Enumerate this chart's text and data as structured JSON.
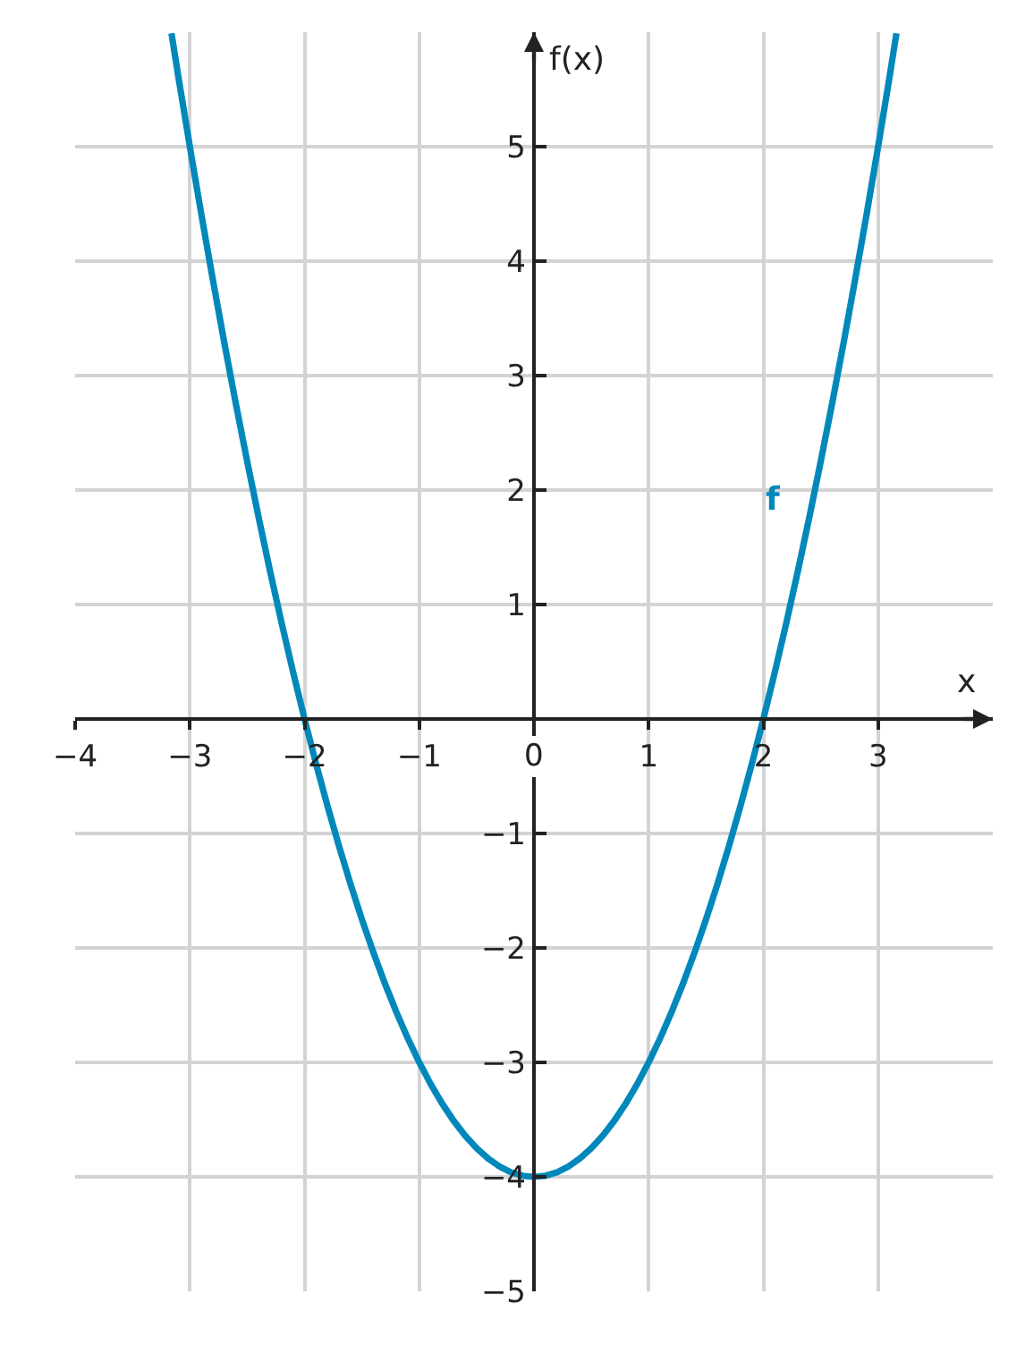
{
  "chart_data": {
    "type": "line",
    "xlabel": "x",
    "ylabel": "f(x)",
    "x": [
      -3.16,
      -3.1,
      -3.0,
      -2.9,
      -2.8,
      -2.7,
      -2.6,
      -2.5,
      -2.4,
      -2.3,
      -2.2,
      -2.1,
      -2.0,
      -1.9,
      -1.8,
      -1.7,
      -1.6,
      -1.5,
      -1.4,
      -1.3,
      -1.2,
      -1.1,
      -1.0,
      -0.9,
      -0.8,
      -0.7,
      -0.6,
      -0.5,
      -0.4,
      -0.3,
      -0.2,
      -0.1,
      0,
      0.1,
      0.2,
      0.3,
      0.4,
      0.5,
      0.6,
      0.7,
      0.8,
      0.9,
      1.0,
      1.1,
      1.2,
      1.3,
      1.4,
      1.5,
      1.6,
      1.7,
      1.8,
      1.9,
      2.0,
      2.1,
      2.2,
      2.3,
      2.4,
      2.5,
      2.6,
      2.7,
      2.8,
      2.9,
      3.0,
      3.1,
      3.16
    ],
    "series": [
      {
        "name": "f",
        "color": "#0088bb",
        "values": [
          5.99,
          5.61,
          5,
          4.41,
          3.84,
          3.29,
          2.76,
          2.25,
          1.76,
          1.29,
          0.84,
          0.41,
          0,
          -0.39,
          -0.76,
          -1.11,
          -1.44,
          -1.75,
          -2.04,
          -2.31,
          -2.56,
          -2.79,
          -3,
          -3.19,
          -3.36,
          -3.51,
          -3.64,
          -3.75,
          -3.84,
          -3.91,
          -3.96,
          -3.99,
          -4,
          -3.99,
          -3.96,
          -3.91,
          -3.84,
          -3.75,
          -3.64,
          -3.51,
          -3.36,
          -3.19,
          -3,
          -2.79,
          -2.56,
          -2.31,
          -2.04,
          -1.75,
          -1.44,
          -1.11,
          -0.76,
          -0.39,
          0,
          0.41,
          0.84,
          1.29,
          1.76,
          2.25,
          2.76,
          3.29,
          3.84,
          4.41,
          5,
          5.61,
          5.99
        ]
      }
    ],
    "xlim": [
      -4,
      4
    ],
    "ylim": [
      -5,
      6
    ],
    "xticks": [
      -4,
      -3,
      -2,
      -1,
      0,
      1,
      2,
      3
    ],
    "yticks": [
      -5,
      -4,
      -3,
      -2,
      -1,
      1,
      2,
      3,
      4,
      5
    ],
    "grid": true
  }
}
